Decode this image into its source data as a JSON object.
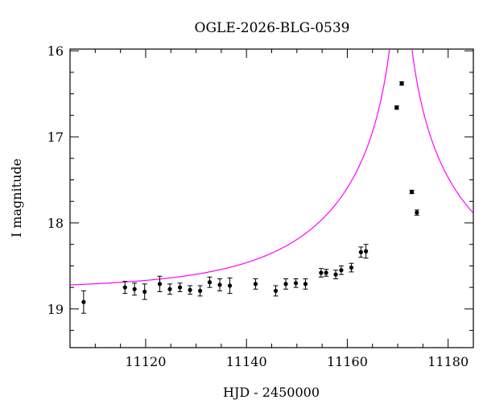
{
  "chart_data": {
    "type": "scatter",
    "title": "OGLE-2026-BLG-0539",
    "xlabel": "HJD - 2450000",
    "ylabel": "I magnitude",
    "xlim": [
      11105,
      11185
    ],
    "ylim": [
      19.45,
      15.98
    ],
    "y_inverted": true,
    "grid": false,
    "x_ticks": [
      11120,
      11140,
      11160,
      11180
    ],
    "y_ticks": [
      16,
      17,
      18,
      19
    ],
    "x_tick_labels": [
      "11120",
      "11140",
      "11160",
      "11180"
    ],
    "y_tick_labels": [
      "16",
      "17",
      "18",
      "19"
    ],
    "model_color": "#ff00ff",
    "point_color": "#000000",
    "model": {
      "t0": 11170.6,
      "baseline": 18.77,
      "u0": 0.02,
      "tE": 30.0
    },
    "points": [
      {
        "x": 11107.7,
        "y": 18.92,
        "err": 0.13
      },
      {
        "x": 11115.9,
        "y": 18.75,
        "err": 0.07
      },
      {
        "x": 11117.8,
        "y": 18.77,
        "err": 0.07
      },
      {
        "x": 11119.8,
        "y": 18.8,
        "err": 0.09
      },
      {
        "x": 11122.8,
        "y": 18.71,
        "err": 0.09
      },
      {
        "x": 11124.8,
        "y": 18.77,
        "err": 0.06
      },
      {
        "x": 11126.8,
        "y": 18.75,
        "err": 0.05
      },
      {
        "x": 11128.8,
        "y": 18.78,
        "err": 0.05
      },
      {
        "x": 11130.8,
        "y": 18.79,
        "err": 0.06
      },
      {
        "x": 11132.7,
        "y": 18.69,
        "err": 0.06
      },
      {
        "x": 11134.7,
        "y": 18.72,
        "err": 0.07
      },
      {
        "x": 11136.7,
        "y": 18.73,
        "err": 0.09
      },
      {
        "x": 11141.8,
        "y": 18.71,
        "err": 0.06
      },
      {
        "x": 11145.8,
        "y": 18.79,
        "err": 0.06
      },
      {
        "x": 11147.8,
        "y": 18.71,
        "err": 0.06
      },
      {
        "x": 11149.8,
        "y": 18.7,
        "err": 0.05
      },
      {
        "x": 11151.7,
        "y": 18.71,
        "err": 0.06
      },
      {
        "x": 11154.8,
        "y": 18.58,
        "err": 0.05
      },
      {
        "x": 11155.8,
        "y": 18.58,
        "err": 0.04
      },
      {
        "x": 11157.7,
        "y": 18.6,
        "err": 0.05
      },
      {
        "x": 11158.8,
        "y": 18.55,
        "err": 0.05
      },
      {
        "x": 11160.8,
        "y": 18.52,
        "err": 0.05
      },
      {
        "x": 11162.7,
        "y": 18.34,
        "err": 0.06
      },
      {
        "x": 11163.7,
        "y": 18.33,
        "err": 0.08
      },
      {
        "x": 11169.8,
        "y": 16.66,
        "err": 0.02
      },
      {
        "x": 11170.8,
        "y": 16.38,
        "err": 0.02
      },
      {
        "x": 11172.8,
        "y": 17.64,
        "err": 0.02
      },
      {
        "x": 11173.8,
        "y": 17.88,
        "err": 0.03
      }
    ]
  }
}
